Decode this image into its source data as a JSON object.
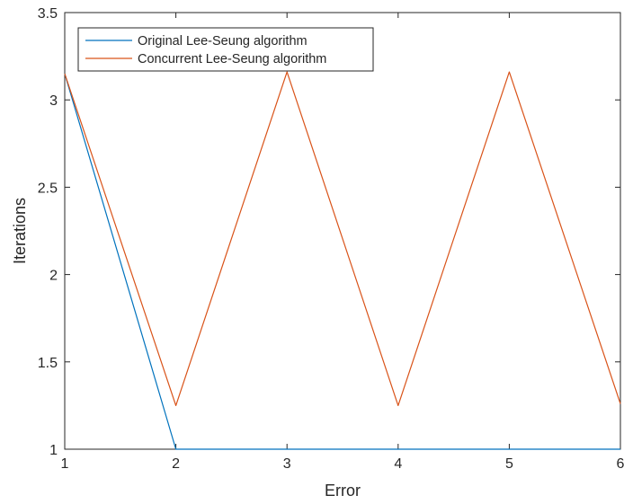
{
  "chart_data": {
    "type": "line",
    "xlabel": "Error",
    "ylabel": "Iterations",
    "xlim": [
      1,
      6
    ],
    "ylim": [
      1,
      3.5
    ],
    "xticks": [
      "1",
      "2",
      "3",
      "4",
      "5",
      "6"
    ],
    "yticks": [
      "1",
      "1.5",
      "2",
      "2.5",
      "3",
      "3.5"
    ],
    "grid": false,
    "legend_position": "top-left",
    "x": [
      1,
      2,
      3,
      4,
      5,
      6
    ],
    "series": [
      {
        "name": "Original Lee-Seung algorithm",
        "color": "#0072BD",
        "values": [
          3.15,
          1,
          1,
          1,
          1,
          1
        ]
      },
      {
        "name": "Concurrent Lee-Seung algorithm",
        "color": "#D95319",
        "values": [
          3.15,
          1.25,
          3.16,
          1.25,
          3.16,
          1.26
        ]
      }
    ]
  }
}
